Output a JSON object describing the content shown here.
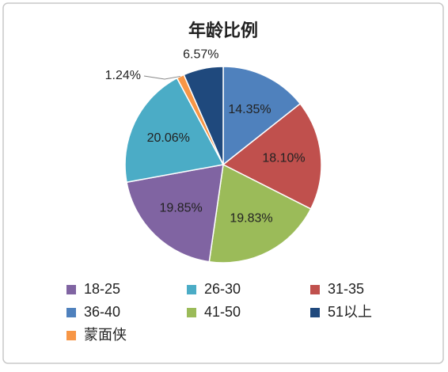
{
  "chart_data": {
    "type": "pie",
    "title": "年龄比例",
    "categories": [
      "36-40",
      "31-35",
      "41-50",
      "18-25",
      "26-30",
      "蒙面侠",
      "51以上"
    ],
    "values": [
      14.35,
      18.1,
      19.83,
      19.85,
      20.06,
      1.24,
      6.57
    ],
    "value_labels": [
      "14.35%",
      "18.10%",
      "19.83%",
      "19.85%",
      "20.06%",
      "1.24%",
      "6.57%"
    ],
    "colors": [
      "#4f81bd",
      "#c0504d",
      "#9bbb59",
      "#8064a2",
      "#4bacc6",
      "#f79646",
      "#1f497d"
    ],
    "legend": "bottom"
  }
}
